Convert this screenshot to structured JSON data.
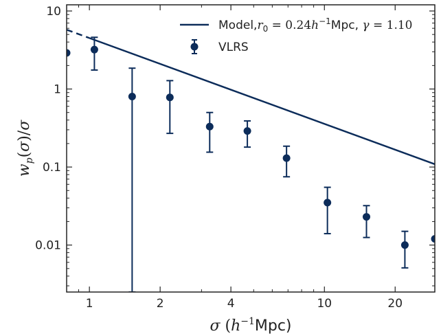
{
  "chart_data": {
    "type": "scatter",
    "xscale": "log",
    "yscale": "log",
    "xlim": [
      0.8,
      29.5
    ],
    "ylim": [
      0.0025,
      12
    ],
    "xticks": [
      {
        "value": 1,
        "label": "1"
      },
      {
        "value": 2,
        "label": "2"
      },
      {
        "value": 4,
        "label": "4"
      },
      {
        "value": 10,
        "label": "10"
      },
      {
        "value": 20,
        "label": "20"
      }
    ],
    "yticks": [
      {
        "value": 10,
        "label": "10"
      },
      {
        "value": 1,
        "label": "1"
      },
      {
        "value": 0.1,
        "label": "0.1"
      },
      {
        "value": 0.01,
        "label": "0.01"
      }
    ],
    "xlabel": {
      "sym": "σ",
      "mid": " (",
      "unit": "h",
      "sup": "−1",
      "tail": "Mpc)"
    },
    "ylabel": "w_p(σ)/σ",
    "legend": {
      "placement": "top-right",
      "model_label": {
        "prefix": "Model,",
        "r": "r",
        "r_sub": "0",
        "eq1": " = 0.24",
        "h": "h",
        "h_sup": "−1",
        "mpc": "Mpc, ",
        "gamma": "γ",
        "eq2": " = 1.10"
      },
      "data_label": "VLRS"
    },
    "colors": {
      "series": "#0c2c5a"
    },
    "model": {
      "name": "Model",
      "r0": 0.24,
      "gamma": 1.1,
      "solid_range": [
        1.0,
        29.5
      ],
      "dashed_range": [
        0.8,
        1.0
      ],
      "y_at_x1": 4.5
    },
    "series": [
      {
        "name": "VLRS",
        "points": [
          {
            "x": 1.05,
            "y": 3.2,
            "ylo": 1.75,
            "yhi": 4.6
          },
          {
            "x": 1.52,
            "y": 0.8,
            "ylo": 0.0025,
            "yhi": 1.85
          },
          {
            "x": 2.2,
            "y": 0.78,
            "ylo": 0.27,
            "yhi": 1.28
          },
          {
            "x": 3.25,
            "y": 0.33,
            "ylo": 0.155,
            "yhi": 0.5
          },
          {
            "x": 4.7,
            "y": 0.29,
            "ylo": 0.18,
            "yhi": 0.39
          },
          {
            "x": 6.9,
            "y": 0.13,
            "ylo": 0.075,
            "yhi": 0.185
          },
          {
            "x": 10.3,
            "y": 0.035,
            "ylo": 0.014,
            "yhi": 0.055
          },
          {
            "x": 15.1,
            "y": 0.023,
            "ylo": 0.0125,
            "yhi": 0.032
          },
          {
            "x": 22.0,
            "y": 0.01,
            "ylo": 0.0051,
            "yhi": 0.015
          },
          {
            "x": 29.5,
            "y": 0.012
          },
          {
            "x": 0.8,
            "y": 2.9
          }
        ]
      }
    ]
  }
}
